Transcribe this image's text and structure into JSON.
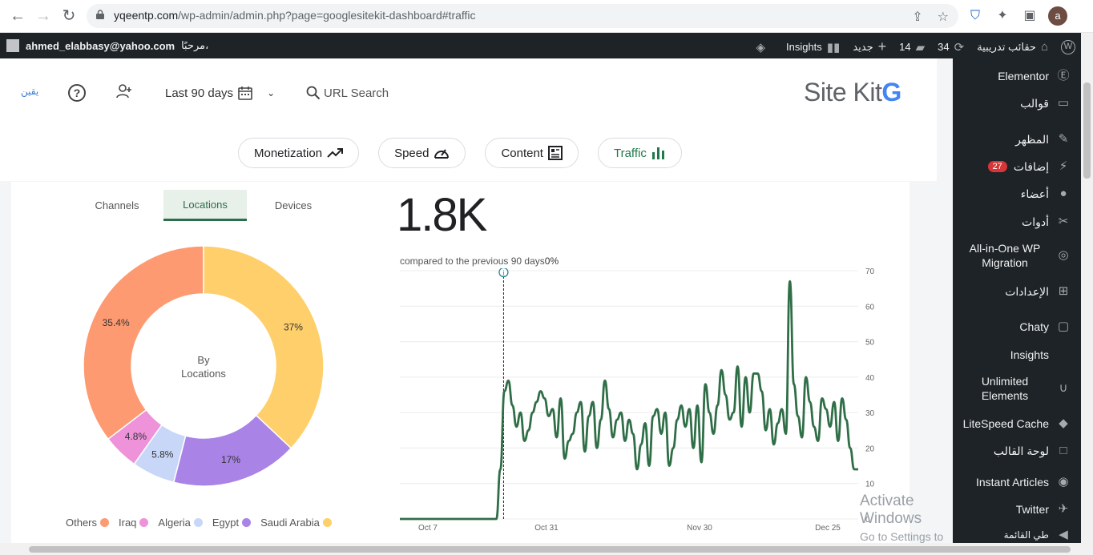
{
  "browser": {
    "url_host": "yqeentp.com",
    "url_path": "/wp-admin/admin.php?page=googlesitekit-dashboard#traffic",
    "avatar_letter": "a"
  },
  "adminbar": {
    "user_email": "ahmed_elabbasy@yahoo.com",
    "greeting": "مرحبًا،",
    "site_name": "حقائب تدريبية",
    "updates_count": "34",
    "comments_count": "14",
    "new_label": "جديد",
    "insights_label": "Insights"
  },
  "sidebar": {
    "items": [
      {
        "label": "Elementor",
        "icon": "elementor-icon"
      },
      {
        "label": "قوالب",
        "icon": "folder-icon"
      },
      {
        "label": "المظهر",
        "icon": "brush-icon"
      },
      {
        "label": "إضافات",
        "icon": "plugin-icon",
        "badge": "27"
      },
      {
        "label": "أعضاء",
        "icon": "user-icon"
      },
      {
        "label": "أدوات",
        "icon": "wrench-icon"
      },
      {
        "label": "All-in-One WP Migration",
        "icon": "migration-icon"
      },
      {
        "label": "الإعدادات",
        "icon": "settings-icon"
      },
      {
        "label": "Chaty",
        "icon": "chat-icon"
      },
      {
        "label": "Insights",
        "icon": "insights-icon"
      },
      {
        "label": "Unlimited Elements",
        "icon": "ue-icon"
      },
      {
        "label": "LiteSpeed Cache",
        "icon": "litespeed-icon"
      },
      {
        "label": "لوحة القالب",
        "icon": "square-icon"
      },
      {
        "label": "Instant Articles",
        "icon": "instant-articles-icon"
      },
      {
        "label": "Twitter",
        "icon": "twitter-icon"
      },
      {
        "label": "طي القائمة",
        "icon": "collapse-icon"
      }
    ]
  },
  "header": {
    "small_logo": "يقين",
    "date_range": "Last 90 days",
    "url_search": "URL Search",
    "brand": "Site Kit",
    "brand_g": "G"
  },
  "nav_chips": [
    {
      "label": "Monetization",
      "icon": "trend-icon"
    },
    {
      "label": "Speed",
      "icon": "gauge-icon"
    },
    {
      "label": "Content",
      "icon": "content-icon"
    },
    {
      "label": "Traffic",
      "icon": "bars-icon",
      "active": true
    }
  ],
  "tabs": [
    "Channels",
    "Locations",
    "Devices"
  ],
  "active_tab": "Locations",
  "donut_center": [
    "By",
    "Locations"
  ],
  "big_number": "1.8K",
  "compare_text": "compared to the previous 90 days",
  "compare_pct": "0%",
  "watermark": {
    "line1": "Activate Windows",
    "line2": "Go to Settings to activate Windows."
  },
  "chart_data": [
    {
      "type": "pie",
      "title": "By Locations",
      "categories": [
        "Saudi Arabia",
        "Egypt",
        "Algeria",
        "Iraq",
        "Others"
      ],
      "values": [
        37,
        17,
        5.8,
        4.8,
        35.4
      ],
      "labels": [
        "37%",
        "17%",
        "5.8%",
        "4.8%",
        "35.4%"
      ],
      "colors": [
        "#fecf6a",
        "#a983e6",
        "#c8d7f8",
        "#ee92da",
        "#fe9a71"
      ],
      "legend": "bottom"
    },
    {
      "type": "line",
      "x_ticks": [
        "Oct 7",
        "Oct 31",
        "Nov 30",
        "Dec 25"
      ],
      "y_ticks": [
        0,
        10,
        20,
        30,
        40,
        50,
        60,
        70
      ],
      "ylim": [
        0,
        70
      ],
      "color": "#2f6e47",
      "values": [
        0,
        0,
        0,
        0,
        0,
        0,
        0,
        0,
        0,
        0,
        0,
        0,
        0,
        0,
        0,
        0,
        0,
        0,
        0,
        0,
        0,
        0,
        0,
        0,
        0,
        14,
        36,
        39,
        32,
        26,
        30,
        22,
        25,
        30,
        33,
        36,
        34,
        29,
        31,
        23,
        34,
        17,
        22,
        24,
        30,
        33,
        19,
        29,
        33,
        20,
        28,
        39,
        31,
        23,
        28,
        30,
        22,
        28,
        24,
        14,
        21,
        27,
        15,
        29,
        31,
        24,
        30,
        15,
        20,
        28,
        32,
        26,
        31,
        20,
        32,
        16,
        38,
        30,
        24,
        32,
        42,
        35,
        28,
        30,
        43,
        26,
        40,
        30,
        41,
        41,
        36,
        25,
        31,
        21,
        27,
        31,
        24,
        67,
        38,
        29,
        23,
        40,
        33,
        26,
        22,
        34,
        31,
        26,
        33,
        22,
        34,
        28,
        20,
        14,
        14
      ],
      "annotation_x_index": 25
    }
  ]
}
